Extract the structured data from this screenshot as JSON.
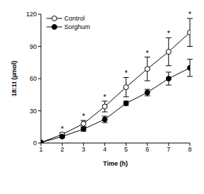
{
  "chart_data": {
    "type": "line",
    "x_label": "Time (h)",
    "y_label": "18:1t (µmol)",
    "x": [
      1,
      2,
      3,
      4,
      5,
      6,
      7,
      8
    ],
    "series": [
      {
        "name": "Control",
        "color": "#000000",
        "marker": "open circle",
        "values": [
          0.5,
          8,
          18,
          34,
          52,
          69,
          85,
          103
        ],
        "errors": [
          0,
          1.5,
          3,
          5,
          9,
          11,
          13,
          13
        ]
      },
      {
        "name": "Sorghum",
        "color": "#000000",
        "marker": "filled circle",
        "values": [
          0.5,
          6,
          13,
          22,
          37,
          47,
          60,
          70
        ],
        "errors": [
          0,
          1,
          2,
          3,
          2,
          3,
          6,
          8
        ]
      }
    ],
    "xlim": [
      1,
      8
    ],
    "xticks": [
      1,
      2,
      3,
      4,
      5,
      6,
      7,
      8
    ],
    "ylim": [
      0,
      120
    ],
    "yticks": [
      0,
      30,
      60,
      90,
      120
    ],
    "grid": false,
    "legend": "top-left",
    "annotations": [
      {
        "text": "*",
        "series": "Control",
        "x": [
          2,
          3,
          4,
          5,
          6,
          7,
          8
        ]
      }
    ]
  }
}
